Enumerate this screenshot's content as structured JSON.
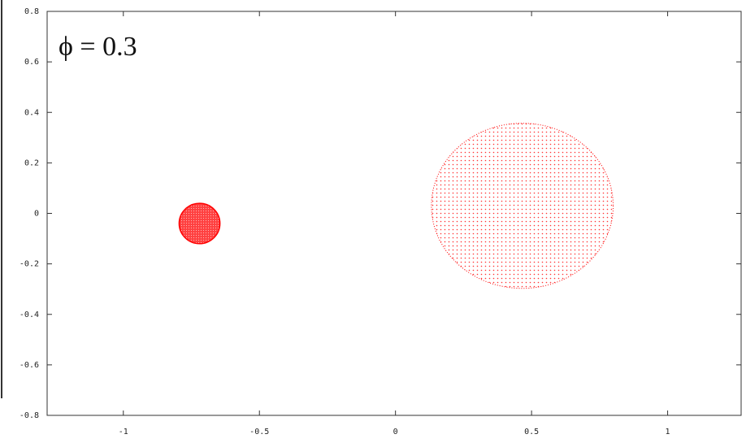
{
  "chart_data": {
    "type": "ellipse",
    "annotation": "ϕ = 0.3",
    "xlim": [
      -1.28,
      1.27
    ],
    "ylim": [
      -0.8,
      0.8
    ],
    "xticks": [
      -1,
      -0.5,
      0,
      0.5,
      1
    ],
    "yticks": [
      -0.8,
      -0.6,
      -0.4,
      -0.2,
      0,
      0.2,
      0.4,
      0.6,
      0.8
    ],
    "bodies": [
      {
        "cx": -0.72,
        "cy": -0.04,
        "rx": 0.075,
        "ry": 0.08,
        "color": "#ff0000"
      },
      {
        "cx": 0.466,
        "cy": 0.03,
        "rx": 0.334,
        "ry": 0.327,
        "color": "#ff0000"
      }
    ]
  }
}
